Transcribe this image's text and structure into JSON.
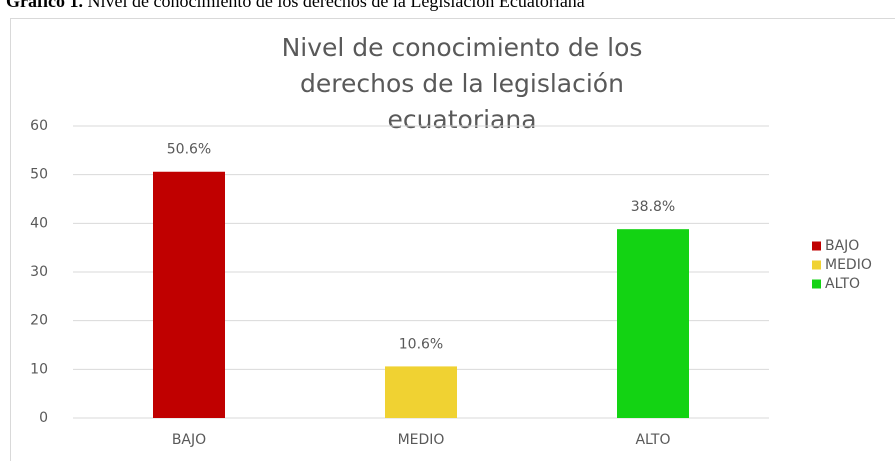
{
  "caption": {
    "label": "Gráfico 1.",
    "text": "Nivel de conocimiento de los derechos de la Legislación Ecuatoriana"
  },
  "chart_data": {
    "type": "bar",
    "title": "Nivel de conocimiento de los derechos de la legislación ecuatoriana",
    "categories": [
      "BAJO",
      "MEDIO",
      "ALTO"
    ],
    "values": [
      50.6,
      10.6,
      38.8
    ],
    "value_labels": [
      "50.6%",
      "10.6%",
      "38.8%"
    ],
    "colors": [
      "#c00000",
      "#f0d232",
      "#13d313"
    ],
    "ylim": [
      0,
      60
    ],
    "yticks": [
      0,
      10,
      20,
      30,
      40,
      50,
      60
    ],
    "grid": true,
    "legend": "right"
  }
}
